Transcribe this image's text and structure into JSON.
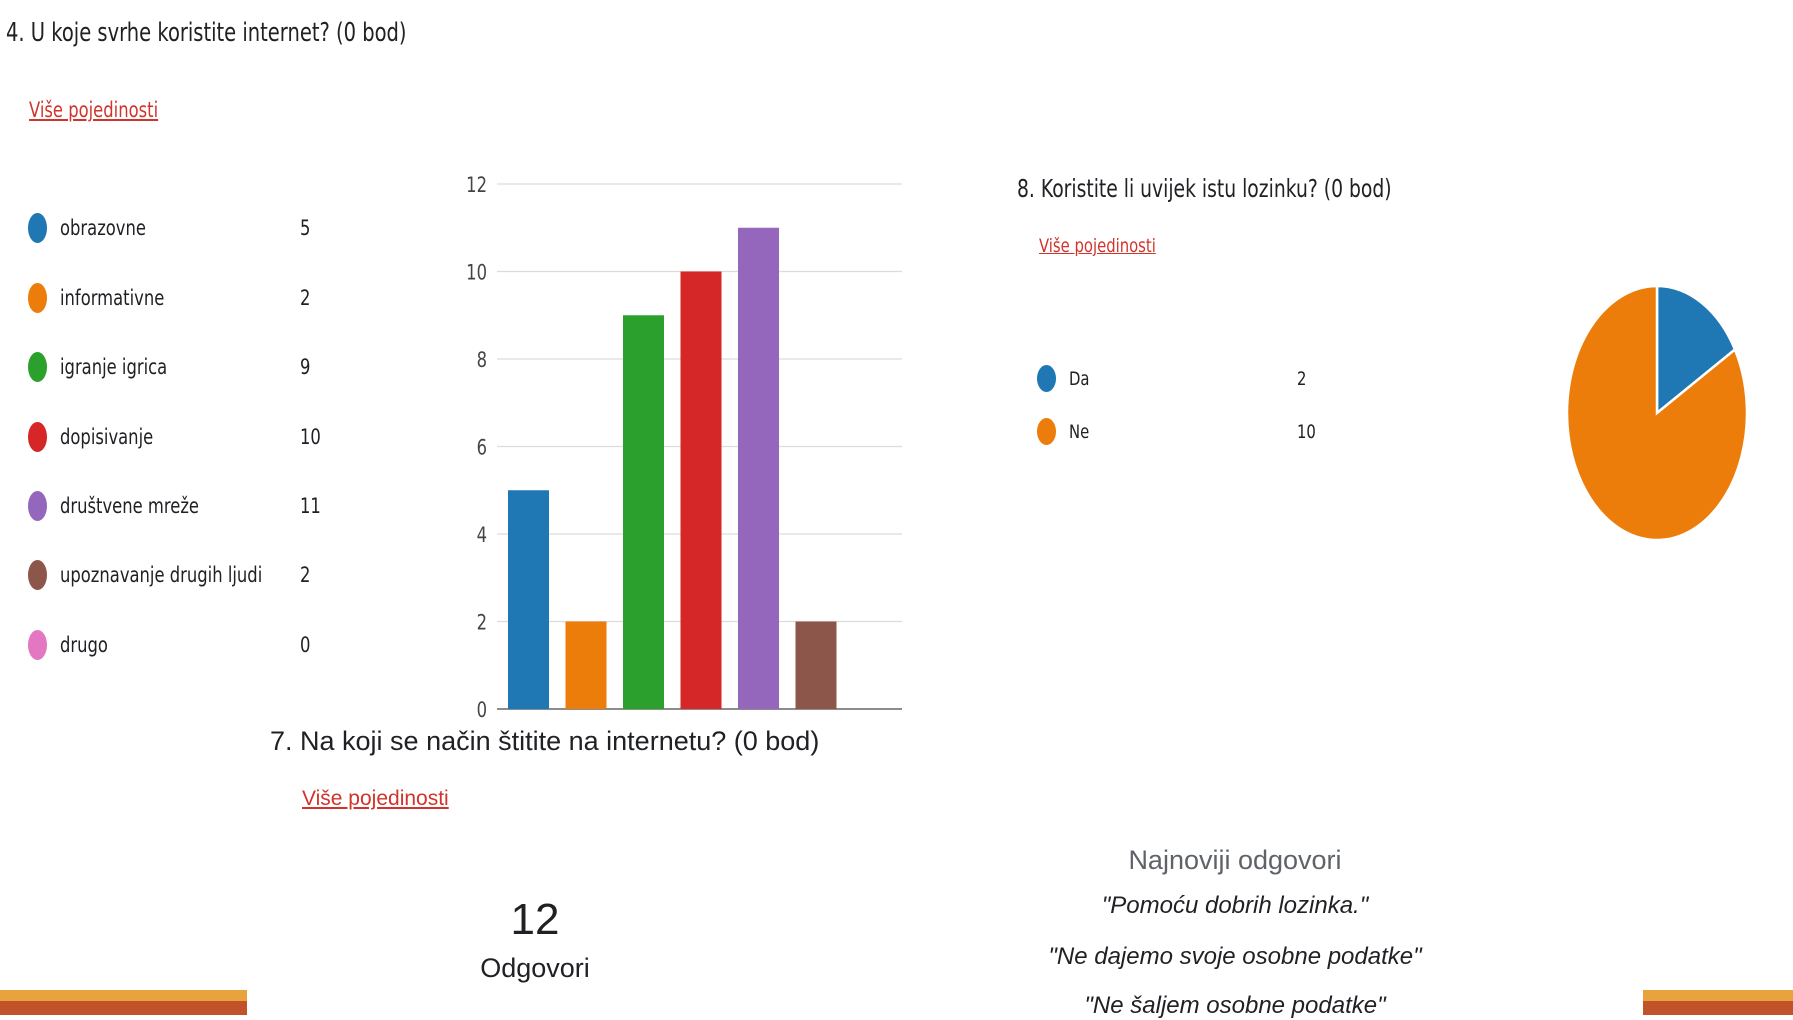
{
  "q4": {
    "title": "4.  U koje svrhe koristite internet? (0 bod)",
    "details_link": "Više pojedinosti",
    "legend": [
      {
        "label": "obrazovne",
        "value": "5",
        "color": "#1f77b4"
      },
      {
        "label": "informativne",
        "value": "2",
        "color": "#ed7d0a"
      },
      {
        "label": "igranje igrica",
        "value": "9",
        "color": "#2ca02c"
      },
      {
        "label": "dopisivanje",
        "value": "10",
        "color": "#d62728"
      },
      {
        "label": "društvene mreže",
        "value": "11",
        "color": "#9467bd"
      },
      {
        "label": "upoznavanje drugih ljudi",
        "value": "2",
        "color": "#8c564b"
      },
      {
        "label": "drugo",
        "value": "0",
        "color": "#e377c2"
      }
    ],
    "chart_data": {
      "type": "bar",
      "categories": [
        "obrazovne",
        "informativne",
        "igranje igrica",
        "dopisivanje",
        "društvene mreže",
        "upoznavanje drugih ljudi",
        "drugo"
      ],
      "values": [
        5,
        2,
        9,
        10,
        11,
        2,
        0
      ],
      "colors": [
        "#1f77b4",
        "#ed7d0a",
        "#2ca02c",
        "#d62728",
        "#9467bd",
        "#8c564b",
        "#e377c2"
      ],
      "yticks": [
        0,
        2,
        4,
        6,
        8,
        10,
        12
      ],
      "ylim": [
        0,
        12
      ],
      "grid": true
    }
  },
  "q8": {
    "title": "8.  Koristite li uvijek istu lozinku? (0 bod)",
    "details_link": "Više pojedinosti",
    "legend": [
      {
        "label": "Da",
        "value": "2",
        "color": "#1f77b4"
      },
      {
        "label": "Ne",
        "value": "10",
        "color": "#ed7d0a"
      }
    ],
    "chart_data": {
      "type": "pie",
      "categories": [
        "Da",
        "Ne"
      ],
      "values": [
        2,
        10
      ],
      "colors": [
        "#1f77b4",
        "#ed7d0a"
      ]
    }
  },
  "q7": {
    "title": "7.  Na koji se način štitite na internetu? (0 bod)",
    "details_link": "Više pojedinosti",
    "response_count": "12",
    "response_label": "Odgovori",
    "latest_heading": "Najnoviji odgovori",
    "latest_responses": [
      "\"Pomoću dobrih lozinka.\"",
      "\"Ne dajemo svoje osobne podatke\"",
      "\"Ne šaljem osobne podatke\""
    ]
  },
  "decor": {
    "bar_orange": "#e8a33c",
    "bar_rust": "#c0532a"
  }
}
